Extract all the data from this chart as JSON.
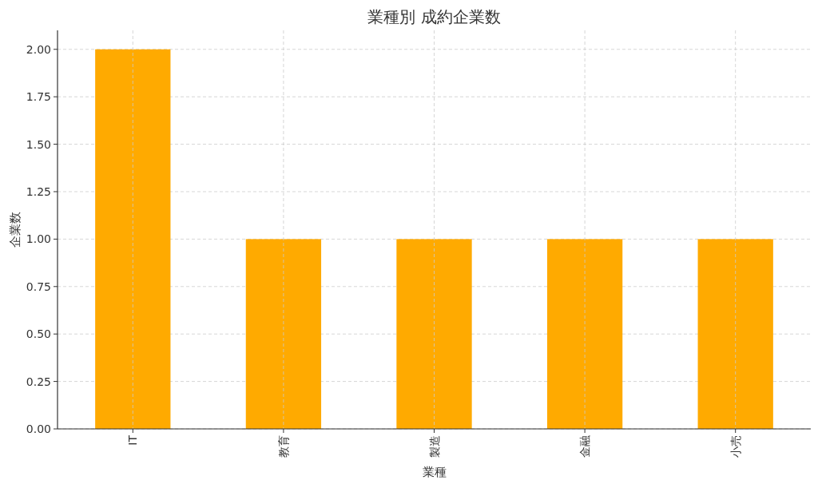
{
  "chart_data": {
    "type": "bar",
    "title": "業種別 成約企業数",
    "xlabel": "業種",
    "ylabel": "企業数",
    "categories": [
      "IT",
      "教育",
      "製造",
      "金融",
      "小売"
    ],
    "values": [
      2,
      1,
      1,
      1,
      1
    ],
    "color": "#ffaa00",
    "ylim": [
      0,
      2.1
    ],
    "yticks": [
      {
        "value": 0,
        "label": "0.00"
      },
      {
        "value": 0.25,
        "label": "0.25"
      },
      {
        "value": 0.5,
        "label": "0.50"
      },
      {
        "value": 0.75,
        "label": "0.75"
      },
      {
        "value": 1,
        "label": "1.00"
      },
      {
        "value": 1.25,
        "label": "1.25"
      },
      {
        "value": 1.5,
        "label": "1.50"
      },
      {
        "value": 1.75,
        "label": "1.75"
      },
      {
        "value": 2,
        "label": "2.00"
      }
    ],
    "grid": true
  }
}
